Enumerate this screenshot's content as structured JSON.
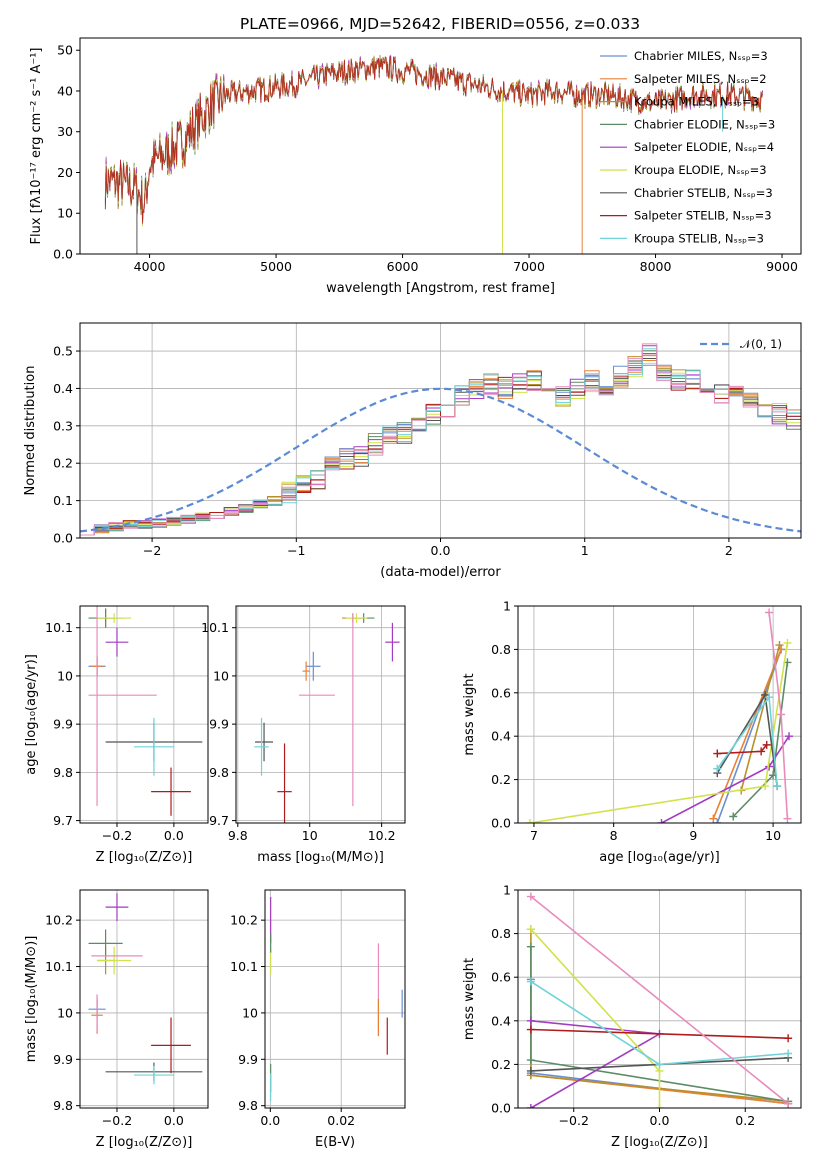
{
  "title": "PLATE=0966, MJD=52642, FIBERID=0556, z=0.033",
  "colors": [
    "#6a8fd0",
    "#e8823a",
    "#b8902a",
    "#5b8c66",
    "#a23cc0",
    "#d2e24a",
    "#555555",
    "#b01c1c",
    "#6fd3d8",
    "#e88bbd"
  ],
  "chart_data": [
    {
      "id": "spectrum",
      "type": "line",
      "xlabel": "wavelength [Angstrom, rest frame]",
      "ylabel": "Flux [fλ10⁻¹⁷ erg cm⁻² s⁻¹ A⁻¹]",
      "xlim": [
        3450,
        9150
      ],
      "ylim": [
        0,
        53
      ],
      "xticks": [
        4000,
        5000,
        6000,
        7000,
        8000,
        9000
      ],
      "yticks": [
        0,
        10,
        20,
        30,
        40,
        50
      ],
      "grid": false,
      "legend_position": "top-right",
      "legend": [
        "Chabrier MILES, Nₛₛₚ=3",
        "Salpeter MILES, Nₛₛₚ=2",
        "Kroupa MILES, Nₛₛₚ=3",
        "Chabrier ELODIE, Nₛₛₚ=3",
        "Salpeter ELODIE, Nₛₛₚ=4",
        "Kroupa ELODIE, Nₛₛₚ=3",
        "Chabrier STELIB, Nₛₛₚ=3",
        "Salpeter STELIB, Nₛₛₚ=3",
        "Kroupa STELIB, Nₛₛₚ=3"
      ],
      "continuum": [
        [
          3650,
          18
        ],
        [
          3800,
          17
        ],
        [
          3900,
          16
        ],
        [
          3960,
          12
        ],
        [
          4000,
          22
        ],
        [
          4100,
          24
        ],
        [
          4200,
          26
        ],
        [
          4300,
          29
        ],
        [
          4400,
          33
        ],
        [
          4500,
          37
        ],
        [
          4600,
          39
        ],
        [
          4800,
          40
        ],
        [
          5000,
          41
        ],
        [
          5200,
          42
        ],
        [
          5400,
          44
        ],
        [
          5600,
          45
        ],
        [
          5800,
          46
        ],
        [
          6000,
          45
        ],
        [
          6200,
          44
        ],
        [
          6500,
          42
        ],
        [
          6800,
          40
        ],
        [
          7000,
          39
        ],
        [
          7200,
          40
        ],
        [
          7400,
          39
        ],
        [
          7600,
          39
        ],
        [
          7800,
          38
        ],
        [
          8000,
          37
        ],
        [
          8300,
          39
        ],
        [
          8600,
          39
        ],
        [
          8850,
          38
        ]
      ],
      "dips": [
        [
          6790,
          0,
          "Kroupa ELODIE"
        ],
        [
          7420,
          0,
          "Salpeter MILES"
        ],
        [
          3900,
          0,
          "Chabrier STELIB"
        ],
        [
          8530,
          30,
          "Kroupa STELIB"
        ]
      ]
    },
    {
      "id": "residuals",
      "type": "histogram",
      "xlabel": "(data-model)/error",
      "ylabel": "Normed distribution",
      "xlim": [
        -2.5,
        2.5
      ],
      "ylim": [
        0,
        0.575
      ],
      "xticks": [
        -2,
        -1,
        0,
        1,
        2
      ],
      "yticks": [
        0.0,
        0.1,
        0.2,
        0.3,
        0.4,
        0.5
      ],
      "grid": true,
      "legend_position": "top-right",
      "reference_label": "𝒩(0, 1)",
      "bin_width": 0.1,
      "bin_start": -2.5,
      "base": [
        0.02,
        0.025,
        0.03,
        0.035,
        0.035,
        0.04,
        0.045,
        0.05,
        0.055,
        0.06,
        0.07,
        0.08,
        0.09,
        0.1,
        0.12,
        0.14,
        0.16,
        0.19,
        0.21,
        0.22,
        0.25,
        0.27,
        0.28,
        0.31,
        0.33,
        0.35,
        0.38,
        0.4,
        0.41,
        0.4,
        0.41,
        0.42,
        0.4,
        0.38,
        0.4,
        0.42,
        0.4,
        0.43,
        0.46,
        0.49,
        0.45,
        0.42,
        0.42,
        0.41,
        0.39,
        0.38,
        0.37,
        0.35,
        0.33,
        0.32,
        0.32,
        0.3,
        0.28,
        0.26,
        0.25,
        0.24,
        0.16,
        0.15,
        0.14,
        0.12,
        0.1,
        0.1,
        0.09,
        0.085,
        0.075,
        0.065,
        0.05,
        0.045,
        0.04,
        0.035,
        0.03,
        0.03,
        0.025,
        0.02,
        0.015,
        0.015
      ]
    },
    {
      "id": "age-vs-Z",
      "type": "errorbar",
      "xlabel": "Z [log₁₀(Z/Z⊙)]",
      "ylabel": "age  [log₁₀(age/yr)]",
      "xlim": [
        -0.33,
        0.12
      ],
      "ylim": [
        9.695,
        10.145
      ],
      "xticks": [
        -0.2,
        0.0
      ],
      "yticks": [
        9.7,
        9.8,
        9.9,
        10.0,
        10.1
      ],
      "points": [
        {
          "x": -0.27,
          "y": 10.02,
          "xerr": 0.03,
          "yerr": 0.02,
          "c": 0
        },
        {
          "x": -0.27,
          "y": 10.02,
          "xerr": 0.02,
          "yerr": 0.02,
          "c": 1
        },
        {
          "x": -0.24,
          "y": 10.12,
          "xerr": 0.03,
          "yerr": 0.02,
          "c": 2
        },
        {
          "x": -0.24,
          "y": 10.12,
          "xerr": 0.06,
          "yerr": 0.02,
          "c": 3
        },
        {
          "x": -0.2,
          "y": 10.07,
          "xerr": 0.04,
          "yerr": 0.03,
          "c": 4
        },
        {
          "x": -0.21,
          "y": 10.12,
          "xerr": 0.06,
          "yerr": 0.01,
          "c": 5
        },
        {
          "x": -0.07,
          "y": 9.863,
          "xerr": 0.17,
          "yerr": 0.04,
          "c": 6
        },
        {
          "x": -0.01,
          "y": 9.76,
          "xerr": 0.07,
          "yerr": 0.05,
          "c": 7
        },
        {
          "x": -0.07,
          "y": 9.853,
          "xerr": 0.07,
          "yerr": 0.06,
          "c": 8
        },
        {
          "x": -0.27,
          "y": 9.96,
          "xerr": 0.03,
          "yerr": 0.23,
          "c": 9
        },
        {
          "x": -0.15,
          "y": 9.96,
          "xerr": 0.09,
          "yerr": 0.0,
          "c": 9
        }
      ]
    },
    {
      "id": "age-vs-mass",
      "type": "errorbar",
      "xlabel": "mass [log₁₀(M/M⊙)]",
      "ylabel": "",
      "xlim": [
        9.795,
        10.265
      ],
      "ylim": [
        9.695,
        10.145
      ],
      "xticks": [
        9.8,
        10.0,
        10.2
      ],
      "yticks": [
        9.7,
        9.8,
        9.9,
        10.0,
        10.1
      ],
      "points": [
        {
          "x": 10.01,
          "y": 10.02,
          "xerr": 0.02,
          "yerr": 0.03,
          "c": 0
        },
        {
          "x": 9.99,
          "y": 10.01,
          "xerr": 0.01,
          "yerr": 0.02,
          "c": 1
        },
        {
          "x": 10.12,
          "y": 10.12,
          "xerr": 0.03,
          "yerr": 0.01,
          "c": 2
        },
        {
          "x": 10.15,
          "y": 10.12,
          "xerr": 0.03,
          "yerr": 0.01,
          "c": 3
        },
        {
          "x": 10.23,
          "y": 10.07,
          "xerr": 0.02,
          "yerr": 0.04,
          "c": 4
        },
        {
          "x": 10.13,
          "y": 10.12,
          "xerr": 0.03,
          "yerr": 0.01,
          "c": 5
        },
        {
          "x": 9.873,
          "y": 9.863,
          "xerr": 0.025,
          "yerr": 0.04,
          "c": 6
        },
        {
          "x": 9.93,
          "y": 9.76,
          "xerr": 0.02,
          "yerr": 0.1,
          "c": 7
        },
        {
          "x": 9.866,
          "y": 9.853,
          "xerr": 0.02,
          "yerr": 0.06,
          "c": 8
        },
        {
          "x": 10.02,
          "y": 9.96,
          "xerr": 0.05,
          "yerr": 0.0,
          "c": 9
        },
        {
          "x": 10.12,
          "y": 9.93,
          "xerr": 0.0,
          "yerr": 0.2,
          "c": 9
        }
      ]
    },
    {
      "id": "weight-vs-age",
      "type": "line",
      "xlabel": "age  [log₁₀(age/yr)]",
      "ylabel": "mass weight",
      "xlim": [
        6.8,
        10.35
      ],
      "ylim": [
        0,
        1
      ],
      "xticks": [
        7,
        8,
        9,
        10
      ],
      "yticks": [
        0.0,
        0.2,
        0.4,
        0.6,
        0.8,
        1.0
      ],
      "grid": true,
      "series": [
        {
          "c": 0,
          "x": [
            9.3,
            10.1,
            9.9
          ],
          "y": [
            0.0,
            0.8,
            0.59
          ]
        },
        {
          "c": 1,
          "x": [
            9.25,
            10.1
          ],
          "y": [
            0.02,
            0.8
          ]
        },
        {
          "c": 2,
          "x": [
            9.6,
            10.08
          ],
          "y": [
            0.15,
            0.82
          ]
        },
        {
          "c": 3,
          "x": [
            9.5,
            10.0,
            10.18
          ],
          "y": [
            0.03,
            0.22,
            0.74
          ]
        },
        {
          "c": 4,
          "x": [
            8.6,
            9.95,
            10.2
          ],
          "y": [
            0.0,
            0.26,
            0.4
          ]
        },
        {
          "c": 5,
          "x": [
            6.95,
            9.9,
            10.18
          ],
          "y": [
            0.0,
            0.17,
            0.83
          ]
        },
        {
          "c": 6,
          "x": [
            9.3,
            9.9,
            10.05
          ],
          "y": [
            0.23,
            0.59,
            0.17
          ]
        },
        {
          "c": 7,
          "x": [
            9.3,
            9.85,
            9.92
          ],
          "y": [
            0.32,
            0.33,
            0.36
          ]
        },
        {
          "c": 8,
          "x": [
            9.3,
            9.95,
            10.05
          ],
          "y": [
            0.25,
            0.58,
            0.17
          ]
        },
        {
          "c": 9,
          "x": [
            9.95,
            10.1,
            10.18
          ],
          "y": [
            0.97,
            0.5,
            0.02
          ]
        }
      ]
    },
    {
      "id": "mass-vs-Z",
      "type": "errorbar",
      "xlabel": "Z [log₁₀(Z/Z⊙)]",
      "ylabel": "mass [log₁₀(M/M⊙)]",
      "xlim": [
        -0.33,
        0.12
      ],
      "ylim": [
        9.795,
        10.265
      ],
      "xticks": [
        -0.2,
        0.0
      ],
      "yticks": [
        9.8,
        9.9,
        10.0,
        10.1,
        10.2
      ],
      "points": [
        {
          "x": -0.27,
          "y": 10.008,
          "xerr": 0.03,
          "yerr": 0.02,
          "c": 0
        },
        {
          "x": -0.27,
          "y": 9.995,
          "xerr": 0.02,
          "yerr": 0.04,
          "c": 1
        },
        {
          "x": -0.24,
          "y": 10.113,
          "xerr": 0.03,
          "yerr": 0.03,
          "c": 2
        },
        {
          "x": -0.24,
          "y": 10.15,
          "xerr": 0.06,
          "yerr": 0.03,
          "c": 3
        },
        {
          "x": -0.2,
          "y": 10.228,
          "xerr": 0.04,
          "yerr": 0.03,
          "c": 4
        },
        {
          "x": -0.21,
          "y": 10.113,
          "xerr": 0.06,
          "yerr": 0.03,
          "c": 5
        },
        {
          "x": -0.07,
          "y": 9.873,
          "xerr": 0.17,
          "yerr": 0.02,
          "c": 6
        },
        {
          "x": -0.01,
          "y": 9.93,
          "xerr": 0.07,
          "yerr": 0.06,
          "c": 7
        },
        {
          "x": -0.07,
          "y": 9.866,
          "xerr": 0.07,
          "yerr": 0.02,
          "c": 8
        },
        {
          "x": -0.27,
          "y": 10.0,
          "xerr": 0.0,
          "yerr": 0.04,
          "c": 9
        },
        {
          "x": -0.2,
          "y": 10.123,
          "xerr": 0.09,
          "yerr": 0.0,
          "c": 9
        }
      ]
    },
    {
      "id": "mass-vs-ebv",
      "type": "errorbar",
      "xlabel": "E(B-V)",
      "ylabel": "",
      "xlim": [
        -0.0015,
        0.038
      ],
      "ylim": [
        9.795,
        10.265
      ],
      "xticks": [
        0.0,
        0.02
      ],
      "yticks": [
        9.8,
        9.9,
        10.0,
        10.1,
        10.2
      ],
      "points": [
        {
          "x": 0.0001,
          "y": 10.2,
          "xerr": 0.0,
          "yerr": 0.05,
          "c": 4
        },
        {
          "x": 0.0001,
          "y": 10.113,
          "xerr": 0.0,
          "yerr": 0.03,
          "c": 5
        },
        {
          "x": 0.0001,
          "y": 10.15,
          "xerr": 0.0,
          "yerr": 0.02,
          "c": 3
        },
        {
          "x": 0.0001,
          "y": 9.86,
          "xerr": 0.0,
          "yerr": 0.03,
          "c": 3
        },
        {
          "x": 0.0001,
          "y": 9.84,
          "xerr": 0.0,
          "yerr": 0.03,
          "c": 8
        },
        {
          "x": 0.0305,
          "y": 10.05,
          "xerr": 0.0,
          "yerr": 0.1,
          "c": 9
        },
        {
          "x": 0.0305,
          "y": 9.99,
          "xerr": 0.0,
          "yerr": 0.04,
          "c": 1
        },
        {
          "x": 0.033,
          "y": 9.95,
          "xerr": 0.0,
          "yerr": 0.04,
          "c": 7
        },
        {
          "x": 0.0372,
          "y": 10.02,
          "xerr": 0.0,
          "yerr": 0.03,
          "c": 0
        }
      ]
    },
    {
      "id": "weight-vs-Z",
      "type": "line",
      "xlabel": "Z [log₁₀(Z/Z⊙)]",
      "ylabel": "mass weight",
      "xlim": [
        -0.33,
        0.33
      ],
      "ylim": [
        0,
        1
      ],
      "xticks": [
        -0.2,
        0.0,
        0.2
      ],
      "yticks": [
        0.0,
        0.2,
        0.4,
        0.6,
        0.8,
        1.0
      ],
      "grid": true,
      "series": [
        {
          "c": 0,
          "x": [
            -0.3,
            -0.3,
            0.3
          ],
          "y": [
            0.59,
            0.16,
            0.02
          ]
        },
        {
          "c": 1,
          "x": [
            -0.3,
            0.3
          ],
          "y": [
            0.15,
            0.02
          ]
        },
        {
          "c": 2,
          "x": [
            -0.3,
            -0.3,
            0.3
          ],
          "y": [
            0.82,
            0.15,
            0.03
          ]
        },
        {
          "c": 3,
          "x": [
            -0.3,
            -0.3,
            0.3
          ],
          "y": [
            0.74,
            0.22,
            0.03
          ]
        },
        {
          "c": 4,
          "x": [
            -0.3,
            0.0,
            -0.3
          ],
          "y": [
            0.0,
            0.34,
            0.4
          ]
        },
        {
          "c": 5,
          "x": [
            -0.3,
            0.0,
            0.0
          ],
          "y": [
            0.82,
            0.17,
            0.0
          ]
        },
        {
          "c": 6,
          "x": [
            -0.3,
            0.3
          ],
          "y": [
            0.17,
            0.23
          ]
        },
        {
          "c": 7,
          "x": [
            -0.3,
            0.3
          ],
          "y": [
            0.36,
            0.32
          ]
        },
        {
          "c": 8,
          "x": [
            -0.3,
            0.0,
            0.3
          ],
          "y": [
            0.58,
            0.2,
            0.25
          ]
        },
        {
          "c": 9,
          "x": [
            -0.3,
            0.3
          ],
          "y": [
            0.97,
            0.02
          ]
        }
      ]
    }
  ]
}
